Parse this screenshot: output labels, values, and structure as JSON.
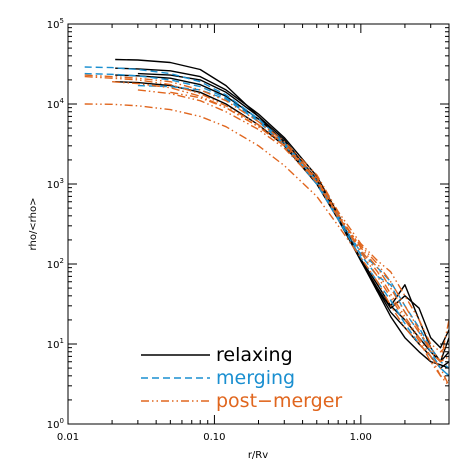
{
  "chart_data": {
    "type": "line",
    "title": "",
    "xlabel": "r/Rv",
    "ylabel": "rho/<rho>",
    "xscale": "log",
    "yscale": "log",
    "xlim": [
      0.01,
      4.0
    ],
    "ylim": [
      1,
      100000
    ],
    "grid": false,
    "legend_position": "bottom-center",
    "x_ticks": [
      {
        "value": 0.01,
        "label": "0.01"
      },
      {
        "value": 0.1,
        "label": "0.10"
      },
      {
        "value": 1,
        "label": "1.00"
      }
    ],
    "y_ticks": [
      {
        "value": 1,
        "label": "10",
        "sup": "0"
      },
      {
        "value": 10,
        "label": "10",
        "sup": "1"
      },
      {
        "value": 100,
        "label": "10",
        "sup": "2"
      },
      {
        "value": 1000,
        "label": "10",
        "sup": "3"
      },
      {
        "value": 10000,
        "label": "10",
        "sup": "4"
      },
      {
        "value": 100000,
        "label": "10",
        "sup": "5"
      }
    ],
    "legend": [
      {
        "label": "relaxing",
        "color": "#000000",
        "dash": "solid"
      },
      {
        "label": "merging",
        "color": "#1a8fd0",
        "dash": "dashed"
      },
      {
        "label": "post−merger",
        "color": "#e0661e",
        "dash": "dash-dot-dot"
      }
    ],
    "series": [
      {
        "group": "relaxing",
        "color": "#000000",
        "dash": "solid",
        "x": [
          0.021,
          0.03,
          0.05,
          0.08,
          0.12,
          0.2,
          0.3,
          0.5,
          0.7,
          1.0,
          1.3,
          1.6,
          2.0,
          2.5,
          3.0,
          3.5,
          4.0
        ],
        "y": [
          36000,
          35500,
          33000,
          27000,
          17000,
          7000,
          3200,
          1000,
          380,
          110,
          45,
          22,
          12,
          8,
          6,
          5.5,
          5
        ]
      },
      {
        "group": "relaxing",
        "color": "#000000",
        "dash": "solid",
        "x": [
          0.021,
          0.03,
          0.05,
          0.08,
          0.12,
          0.2,
          0.3,
          0.5,
          0.7,
          1.0,
          1.3,
          1.6,
          2.0,
          2.5,
          3.0,
          3.5,
          4.0
        ],
        "y": [
          28000,
          27500,
          26000,
          22000,
          15000,
          7500,
          3800,
          1250,
          420,
          110,
          50,
          28,
          40,
          28,
          12,
          9,
          15
        ]
      },
      {
        "group": "relaxing",
        "color": "#000000",
        "dash": "solid",
        "x": [
          0.021,
          0.03,
          0.05,
          0.08,
          0.12,
          0.2,
          0.3,
          0.5,
          0.7,
          1.0,
          1.3,
          1.6,
          2.0,
          2.5,
          3.0,
          3.5,
          4.0
        ],
        "y": [
          23000,
          22500,
          21000,
          17500,
          12500,
          6500,
          3400,
          1150,
          400,
          115,
          55,
          30,
          20,
          12,
          8,
          6,
          8
        ]
      },
      {
        "group": "relaxing",
        "color": "#000000",
        "dash": "solid",
        "x": [
          0.021,
          0.03,
          0.05,
          0.08,
          0.12,
          0.2,
          0.3,
          0.5,
          0.7,
          1.0,
          1.3,
          1.6,
          2.0,
          2.5,
          3.0,
          3.5,
          4.0
        ],
        "y": [
          19000,
          18500,
          17000,
          14000,
          10000,
          5500,
          3000,
          1000,
          360,
          110,
          48,
          25,
          16,
          10,
          7,
          5,
          6
        ]
      },
      {
        "group": "relaxing",
        "color": "#000000",
        "dash": "solid",
        "x": [
          0.03,
          0.05,
          0.08,
          0.12,
          0.2,
          0.3,
          0.5,
          0.7,
          1.0,
          1.3,
          1.6,
          2.0,
          2.5,
          3.0,
          3.5,
          4.0
        ],
        "y": [
          24000,
          23000,
          20000,
          14000,
          7000,
          3600,
          1100,
          380,
          115,
          45,
          30,
          55,
          20,
          9,
          6,
          12
        ]
      },
      {
        "group": "merging",
        "color": "#1a8fd0",
        "dash": "dashed",
        "x": [
          0.013,
          0.02,
          0.03,
          0.05,
          0.08,
          0.12,
          0.2,
          0.3,
          0.5,
          0.7,
          1.0,
          1.3,
          1.6,
          2.0,
          2.5,
          3.0,
          3.5,
          4.0
        ],
        "y": [
          29000,
          28500,
          27000,
          24000,
          19000,
          13000,
          6500,
          3300,
          1100,
          400,
          130,
          70,
          55,
          25,
          14,
          8,
          5,
          4
        ]
      },
      {
        "group": "merging",
        "color": "#1a8fd0",
        "dash": "dashed",
        "x": [
          0.013,
          0.02,
          0.03,
          0.05,
          0.08,
          0.12,
          0.2,
          0.3,
          0.5,
          0.7,
          1.0,
          1.3,
          1.6,
          2.0,
          2.5,
          3.0,
          3.5,
          4.0
        ],
        "y": [
          24000,
          23500,
          22500,
          20000,
          16500,
          12000,
          6200,
          3200,
          1050,
          380,
          140,
          90,
          60,
          30,
          16,
          9,
          6,
          5
        ]
      },
      {
        "group": "merging",
        "color": "#1a8fd0",
        "dash": "dashed",
        "x": [
          0.03,
          0.05,
          0.08,
          0.12,
          0.2,
          0.3,
          0.5,
          0.7,
          1.0,
          1.3,
          1.6,
          2.0,
          2.5,
          3.0,
          3.5,
          4.0
        ],
        "y": [
          17000,
          16500,
          15000,
          11500,
          6000,
          3100,
          1000,
          360,
          120,
          60,
          35,
          18,
          10,
          7,
          5,
          4
        ]
      },
      {
        "group": "post-merger",
        "color": "#e0661e",
        "dash": "dash-dot-dot",
        "x": [
          0.013,
          0.02,
          0.03,
          0.05,
          0.08,
          0.12,
          0.2,
          0.3,
          0.5,
          0.7,
          1.0,
          1.3,
          1.6,
          2.0,
          2.5,
          3.0,
          3.5,
          4.0
        ],
        "y": [
          10000,
          9900,
          9500,
          8500,
          7000,
          5200,
          3000,
          1700,
          700,
          300,
          120,
          60,
          30,
          16,
          10,
          7,
          5,
          3
        ]
      },
      {
        "group": "post-merger",
        "color": "#e0661e",
        "dash": "dash-dot-dot",
        "x": [
          0.013,
          0.02,
          0.03,
          0.05,
          0.08,
          0.12,
          0.2,
          0.3,
          0.5,
          0.7,
          1.0,
          1.3,
          1.6,
          2.0,
          2.5,
          3.0,
          3.5,
          4.0
        ],
        "y": [
          23000,
          22000,
          21000,
          19000,
          15000,
          11000,
          6000,
          3400,
          1300,
          450,
          180,
          110,
          80,
          40,
          20,
          10,
          8,
          10
        ]
      },
      {
        "group": "post-merger",
        "color": "#e0661e",
        "dash": "dash-dot-dot",
        "x": [
          0.013,
          0.02,
          0.03,
          0.05,
          0.08,
          0.12,
          0.2,
          0.3,
          0.5,
          0.7,
          1.0,
          1.3,
          1.6,
          2.0,
          2.5,
          3.0,
          3.5,
          4.0
        ],
        "y": [
          22000,
          21000,
          20000,
          17500,
          13500,
          9500,
          5500,
          3200,
          1200,
          420,
          160,
          90,
          50,
          25,
          14,
          9,
          6,
          7
        ]
      },
      {
        "group": "post-merger",
        "color": "#e0661e",
        "dash": "dash-dot-dot",
        "x": [
          0.02,
          0.03,
          0.05,
          0.08,
          0.12,
          0.2,
          0.3,
          0.5,
          0.7,
          1.0,
          1.3,
          1.6,
          2.0,
          2.5,
          3.0,
          3.5,
          4.0
        ],
        "y": [
          19000,
          18000,
          16000,
          12500,
          9000,
          5200,
          3000,
          1150,
          400,
          150,
          80,
          42,
          22,
          12,
          7,
          4,
          3.5
        ]
      },
      {
        "group": "post-merger",
        "color": "#e0661e",
        "dash": "dash-dot-dot",
        "x": [
          0.03,
          0.05,
          0.08,
          0.12,
          0.2,
          0.3,
          0.5,
          0.7,
          1.0,
          1.3,
          1.6,
          2.0,
          2.5,
          3.0,
          3.5,
          4.0
        ],
        "y": [
          15000,
          13500,
          11000,
          8000,
          4800,
          2800,
          1050,
          380,
          170,
          100,
          60,
          30,
          15,
          8,
          6,
          20
        ]
      },
      {
        "group": "post-merger",
        "color": "#e0661e",
        "dash": "dash-dot-dot",
        "x": [
          0.05,
          0.08,
          0.12,
          0.2,
          0.3,
          0.5,
          0.7,
          1.0,
          1.3,
          1.6,
          2.0,
          2.5,
          3.0,
          3.5,
          4.0
        ],
        "y": [
          14000,
          12000,
          9000,
          5200,
          3000,
          1100,
          400,
          140,
          70,
          38,
          20,
          11,
          6,
          4,
          3
        ]
      }
    ]
  }
}
